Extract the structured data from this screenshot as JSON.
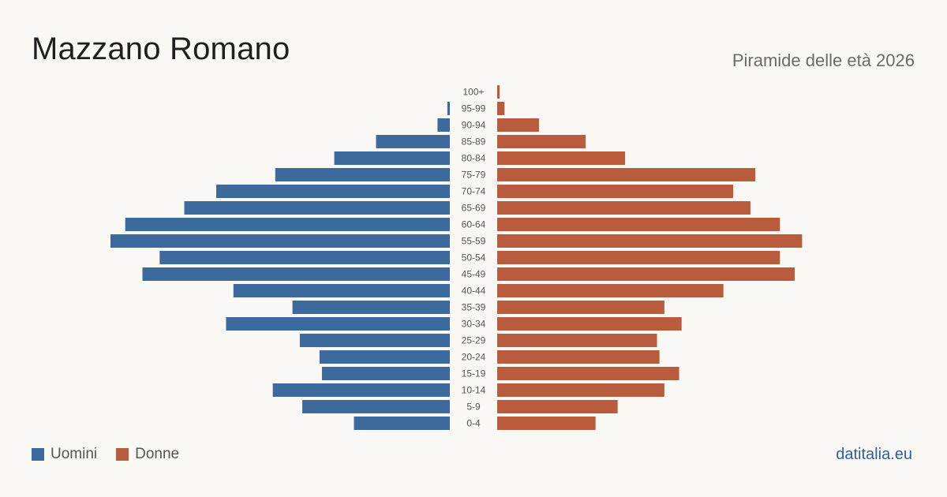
{
  "header": {
    "title": "Mazzano Romano",
    "subtitle": "Piramide delle età 2026"
  },
  "legend": {
    "male_label": "Uomini",
    "female_label": "Donne"
  },
  "footer": {
    "brand": "datitalia.eu"
  },
  "colors": {
    "male": "#3d6a9c",
    "female": "#b85c3d",
    "background": "#faf8f4",
    "brand": "#2f5f95"
  },
  "chart_data": {
    "type": "bar",
    "orientation": "horizontal-pyramid",
    "categories": [
      "100+",
      "95-99",
      "90-94",
      "85-89",
      "80-84",
      "75-79",
      "70-74",
      "65-69",
      "60-64",
      "55-59",
      "50-54",
      "45-49",
      "40-44",
      "35-39",
      "30-34",
      "25-29",
      "20-24",
      "15-19",
      "10-14",
      "5-9",
      "0-4"
    ],
    "series": [
      {
        "name": "Uomini",
        "values": [
          0,
          1,
          5,
          30,
          47,
          71,
          95,
          108,
          132,
          138,
          118,
          125,
          88,
          64,
          91,
          61,
          53,
          52,
          72,
          60,
          39
        ]
      },
      {
        "name": "Donne",
        "values": [
          1,
          3,
          17,
          36,
          52,
          105,
          96,
          103,
          115,
          124,
          115,
          121,
          92,
          68,
          75,
          65,
          66,
          74,
          68,
          49,
          40
        ]
      }
    ],
    "legend_position": "bottom-left",
    "grid": false
  }
}
